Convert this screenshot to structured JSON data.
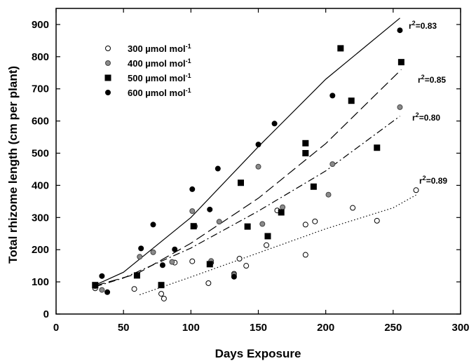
{
  "chart_data": {
    "type": "scatter",
    "xlabel": "Days Exposure",
    "ylabel": "Total rhizome length (cm per plant)",
    "xlim": [
      0,
      300
    ],
    "ylim": [
      0,
      950
    ],
    "xticks": [
      0,
      50,
      100,
      150,
      200,
      250,
      300
    ],
    "yticks": [
      0,
      100,
      200,
      300,
      400,
      500,
      600,
      700,
      800,
      900
    ],
    "legend_position": "top-left",
    "series": [
      {
        "name": "300 µmol mol",
        "name_superscript": "-1",
        "marker": "open-circle",
        "color": "#000000",
        "trend_style": "dotted",
        "r2_label": "r",
        "r2_sup": "2",
        "r2_value": "=0.89",
        "points": [
          [
            29,
            80
          ],
          [
            58,
            78
          ],
          [
            78,
            63
          ],
          [
            80,
            48
          ],
          [
            88,
            160
          ],
          [
            101,
            164
          ],
          [
            113,
            96
          ],
          [
            115,
            160
          ],
          [
            132,
            125
          ],
          [
            136,
            172
          ],
          [
            141,
            150
          ],
          [
            156,
            214
          ],
          [
            164,
            322
          ],
          [
            185,
            278
          ],
          [
            185,
            184
          ],
          [
            192,
            288
          ],
          [
            220,
            330
          ],
          [
            238,
            290
          ],
          [
            267,
            385
          ]
        ],
        "trend": [
          [
            62,
            60
          ],
          [
            100,
            115
          ],
          [
            150,
            190
          ],
          [
            200,
            265
          ],
          [
            250,
            330
          ],
          [
            267,
            370
          ]
        ]
      },
      {
        "name": "400 µmol mol",
        "name_superscript": "-1",
        "marker": "gray-circle",
        "color": "#808080",
        "trend_style": "dash-dot",
        "r2_label": "r",
        "r2_sup": "2",
        "r2_value": "=0.80",
        "points": [
          [
            29,
            86
          ],
          [
            34,
            75
          ],
          [
            62,
            178
          ],
          [
            72,
            192
          ],
          [
            86,
            162
          ],
          [
            101,
            320
          ],
          [
            103,
            273
          ],
          [
            115,
            165
          ],
          [
            121,
            287
          ],
          [
            132,
            122
          ],
          [
            150,
            458
          ],
          [
            153,
            280
          ],
          [
            168,
            332
          ],
          [
            202,
            371
          ],
          [
            205,
            466
          ],
          [
            255,
            643
          ]
        ],
        "trend": [
          [
            29,
            85
          ],
          [
            50,
            112
          ],
          [
            100,
            205
          ],
          [
            150,
            320
          ],
          [
            200,
            445
          ],
          [
            255,
            615
          ]
        ]
      },
      {
        "name": "500 µmol mol",
        "name_superscript": "-1",
        "marker": "filled-square",
        "color": "#000000",
        "trend_style": "long-dash",
        "r2_label": "r",
        "r2_sup": "2",
        "r2_value": "=0.85",
        "points": [
          [
            29,
            90
          ],
          [
            60,
            120
          ],
          [
            78,
            90
          ],
          [
            102,
            273
          ],
          [
            114,
            155
          ],
          [
            137,
            408
          ],
          [
            142,
            272
          ],
          [
            157,
            242
          ],
          [
            167,
            316
          ],
          [
            185,
            531
          ],
          [
            185,
            500
          ],
          [
            191,
            396
          ],
          [
            219,
            663
          ],
          [
            211,
            826
          ],
          [
            238,
            517
          ],
          [
            256,
            783
          ]
        ],
        "trend": [
          [
            29,
            88
          ],
          [
            60,
            125
          ],
          [
            100,
            220
          ],
          [
            150,
            360
          ],
          [
            200,
            530
          ],
          [
            256,
            760
          ]
        ]
      },
      {
        "name": "600 µmol mol",
        "name_superscript": "-1",
        "marker": "filled-circle",
        "color": "#000000",
        "trend_style": "solid",
        "r2_label": "r",
        "r2_sup": "2",
        "r2_value": "=0.83",
        "points": [
          [
            34,
            118
          ],
          [
            38,
            68
          ],
          [
            63,
            204
          ],
          [
            72,
            278
          ],
          [
            79,
            152
          ],
          [
            88,
            201
          ],
          [
            101,
            388
          ],
          [
            114,
            325
          ],
          [
            120,
            452
          ],
          [
            132,
            116
          ],
          [
            150,
            527
          ],
          [
            162,
            592
          ],
          [
            205,
            679
          ],
          [
            255,
            882
          ]
        ],
        "trend": [
          [
            29,
            90
          ],
          [
            50,
            130
          ],
          [
            100,
            300
          ],
          [
            150,
            520
          ],
          [
            200,
            730
          ],
          [
            255,
            920
          ]
        ]
      }
    ]
  }
}
